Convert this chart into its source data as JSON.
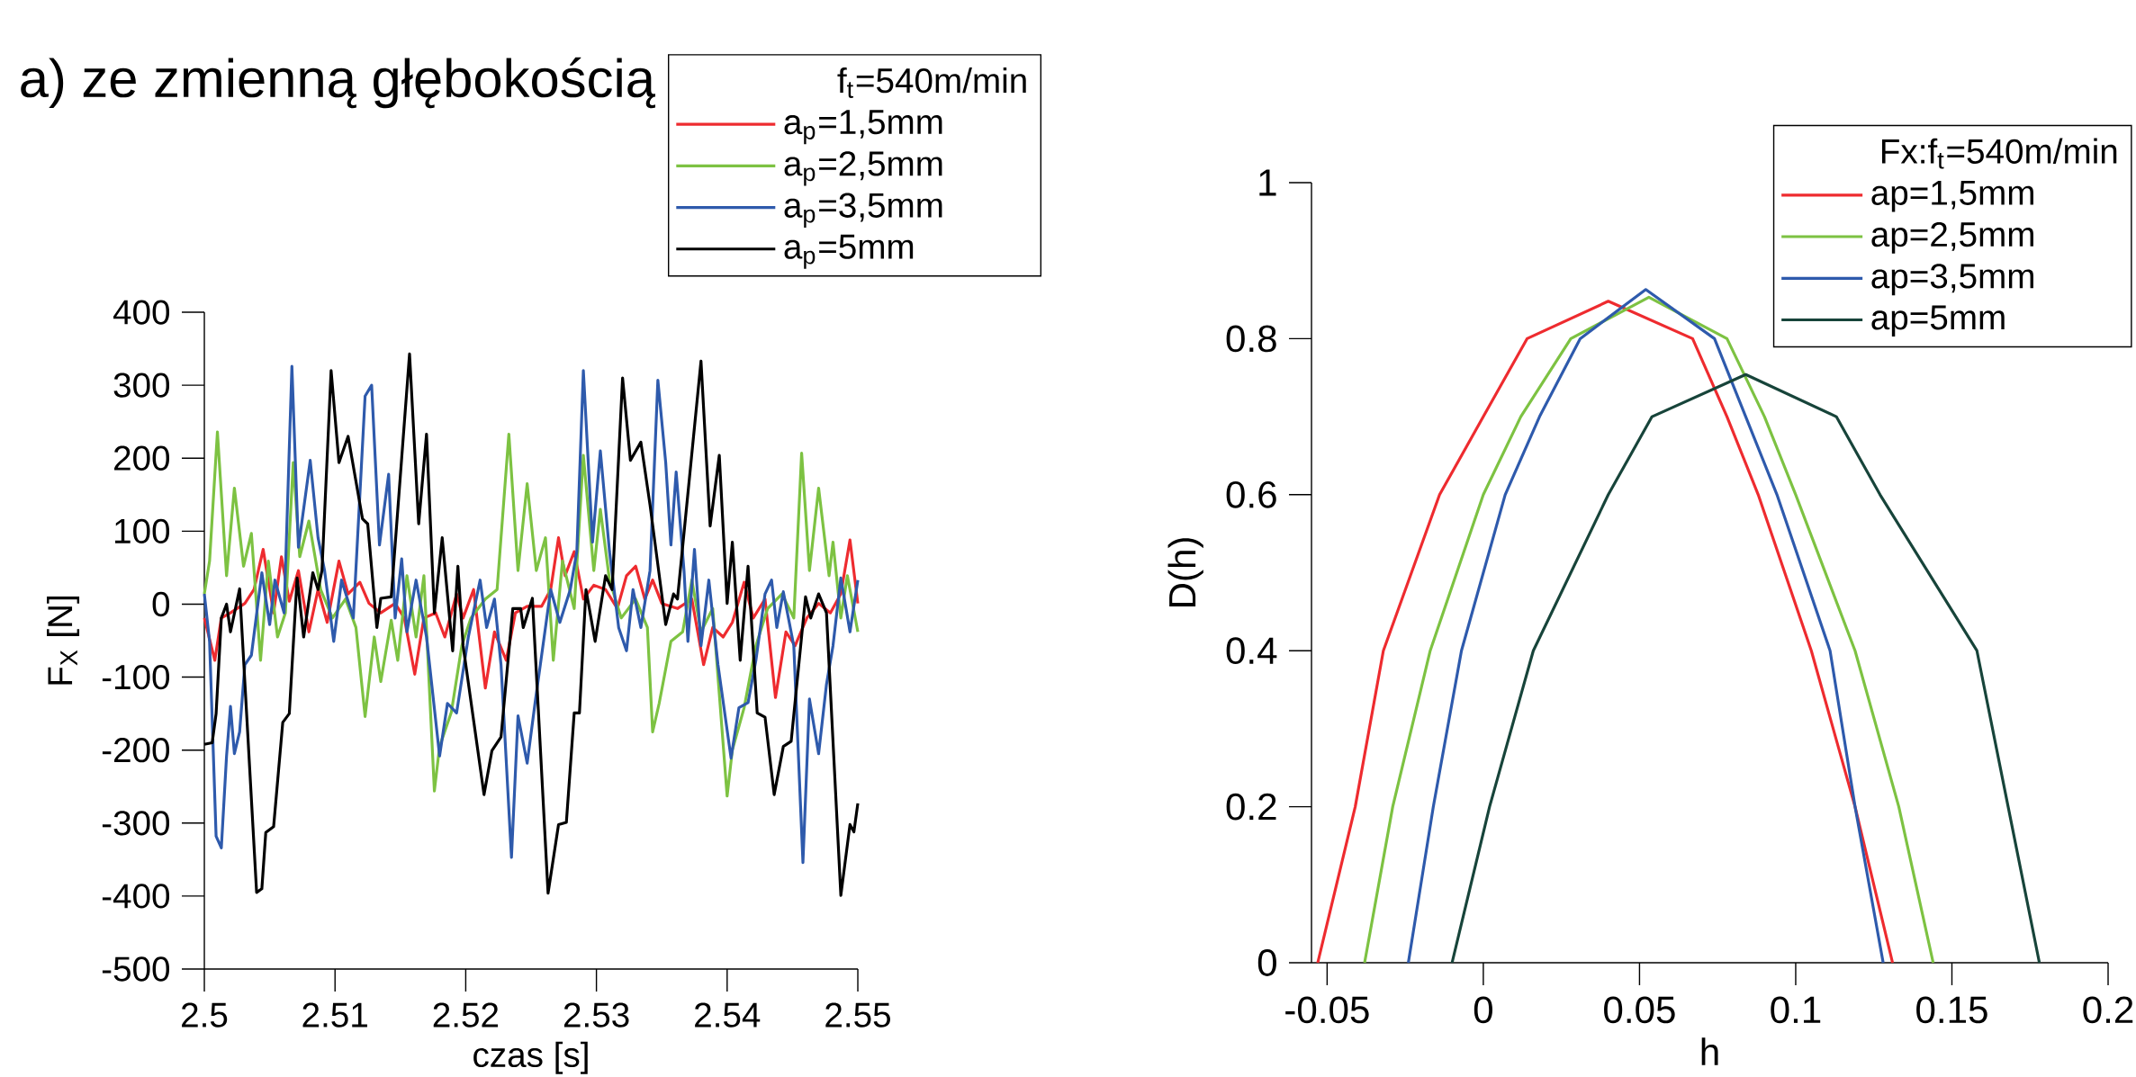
{
  "chart_data": [
    {
      "type": "line",
      "title": "a) ze zmienną głębokością",
      "xlabel": "czas [s]",
      "ylabel": "F$_{X}$ [N]",
      "legend_title": "f$_{t}$=540m/min",
      "legend": "top right",
      "xlim": [
        2.5,
        2.55
      ],
      "ylim": [
        -500,
        400
      ],
      "xticks": [
        2.5,
        2.51,
        2.52,
        2.53,
        2.54,
        2.55
      ],
      "yticks": [
        -500,
        -400,
        -300,
        -200,
        -100,
        0,
        100,
        200,
        300,
        400
      ],
      "series": [
        {
          "name": "a$_{p}$=1,5mm",
          "color": "#ee2b2f",
          "x": [
            2.5,
            2.5008,
            2.5013,
            2.502,
            2.5031,
            2.5038,
            2.5045,
            2.5053,
            2.5059,
            2.5065,
            2.5072,
            2.508,
            2.5087,
            2.5094,
            2.5103,
            2.511,
            2.5119,
            2.5126,
            2.5135,
            2.5146,
            2.5153,
            2.5161,
            2.5168,
            2.5177,
            2.5184,
            2.5193,
            2.5198,
            2.5206,
            2.5215,
            2.5222,
            2.5231,
            2.5238,
            2.5247,
            2.5258,
            2.5265,
            2.5271,
            2.5276,
            2.5283,
            2.529,
            2.5298,
            2.5307,
            2.5316,
            2.5323,
            2.533,
            2.5337,
            2.5343,
            2.535,
            2.5362,
            2.5373,
            2.5382,
            2.5389,
            2.5397,
            2.5404,
            2.5413,
            2.542,
            2.5429,
            2.5437,
            2.5445,
            2.5452,
            2.5461,
            2.547,
            2.5479,
            2.5487,
            2.5494,
            2.55
          ],
          "values": [
            -19,
            -77,
            -19,
            -12,
            1,
            20,
            75,
            -12,
            65,
            4,
            46,
            -38,
            20,
            -25,
            59,
            14,
            30,
            1,
            -12,
            1,
            -19,
            -96,
            -19,
            -12,
            -45,
            14,
            -19,
            20,
            -115,
            -38,
            -77,
            -12,
            -3,
            -3,
            20,
            91,
            39,
            72,
            7,
            26,
            20,
            -6,
            39,
            52,
            7,
            33,
            1,
            -6,
            7,
            -83,
            -32,
            -45,
            -25,
            30,
            -19,
            7,
            -128,
            -38,
            -57,
            -19,
            1,
            -12,
            14,
            88,
            1
          ]
        },
        {
          "name": "a$_{p}$=2,5mm",
          "color": "#7dc242",
          "x": [
            2.5,
            2.5004,
            2.501,
            2.5017,
            2.5023,
            2.503,
            2.5036,
            2.5043,
            2.5049,
            2.5056,
            2.5062,
            2.5068,
            2.5073,
            2.508,
            2.5089,
            2.5098,
            2.5108,
            2.5116,
            2.5123,
            2.513,
            2.5135,
            2.5143,
            2.5148,
            2.5155,
            2.5162,
            2.5168,
            2.5176,
            2.518,
            2.5189,
            2.5197,
            2.5204,
            2.5215,
            2.5224,
            2.5233,
            2.524,
            2.5247,
            2.5254,
            2.5261,
            2.5267,
            2.5274,
            2.5283,
            2.529,
            2.5298,
            2.5303,
            2.531,
            2.5319,
            2.533,
            2.5339,
            2.5343,
            2.5348,
            2.5357,
            2.5366,
            2.5373,
            2.538,
            2.5389,
            2.54,
            2.5404,
            2.5413,
            2.5422,
            2.5431,
            2.5442,
            2.5451,
            2.5457,
            2.5463,
            2.547,
            2.5478,
            2.5481,
            2.5487,
            2.5492,
            2.55
          ],
          "values": [
            14,
            59,
            236,
            39,
            159,
            52,
            97,
            -77,
            59,
            -45,
            -12,
            194,
            65,
            114,
            20,
            -19,
            7,
            -32,
            -154,
            -45,
            -106,
            -22,
            -77,
            39,
            -45,
            39,
            -256,
            -195,
            -148,
            -57,
            -19,
            7,
            20,
            233,
            46,
            165,
            46,
            91,
            -77,
            59,
            -6,
            204,
            46,
            130,
            33,
            -19,
            7,
            -32,
            -175,
            -136,
            -51,
            -38,
            33,
            -38,
            -6,
            -263,
            -200,
            -142,
            -57,
            -6,
            14,
            -19,
            207,
            46,
            159,
            39,
            85,
            -19,
            39,
            -38
          ]
        },
        {
          "name": "a$_{p}$=3,5mm",
          "color": "#2e5aac",
          "x": [
            2.5,
            2.5004,
            2.5009,
            2.5013,
            2.5017,
            2.502,
            2.5023,
            2.5027,
            2.5031,
            2.5036,
            2.5044,
            2.505,
            2.5054,
            2.5061,
            2.5067,
            2.5072,
            2.5081,
            2.5087,
            2.5092,
            2.5099,
            2.5105,
            2.5114,
            2.5123,
            2.5128,
            2.5134,
            2.5141,
            2.5146,
            2.5151,
            2.5155,
            2.5162,
            2.517,
            2.518,
            2.5186,
            2.5193,
            2.5202,
            2.5211,
            2.5216,
            2.5222,
            2.5227,
            2.5235,
            2.524,
            2.5247,
            2.5253,
            2.5265,
            2.5272,
            2.528,
            2.5285,
            2.529,
            2.5297,
            2.5303,
            2.531,
            2.5317,
            2.5323,
            2.5328,
            2.5334,
            2.5341,
            2.5347,
            2.5353,
            2.5357,
            2.5361,
            2.5367,
            2.537,
            2.5375,
            2.538,
            2.5386,
            2.5393,
            2.5403,
            2.5409,
            2.5416,
            2.5422,
            2.5429,
            2.5434,
            2.5438,
            2.5443,
            2.5451,
            2.5458,
            2.5463,
            2.547,
            2.5476,
            2.5481,
            2.5487,
            2.5494,
            2.55
          ],
          "values": [
            14,
            -51,
            -318,
            -334,
            -208,
            -140,
            -205,
            -175,
            -83,
            -70,
            43,
            -28,
            33,
            -12,
            326,
            78,
            197,
            91,
            46,
            -51,
            33,
            -19,
            285,
            300,
            81,
            178,
            -19,
            62,
            -38,
            33,
            -45,
            -208,
            -136,
            -149,
            -45,
            33,
            -32,
            7,
            -83,
            -347,
            -153,
            -218,
            -136,
            20,
            -25,
            20,
            72,
            320,
            85,
            210,
            72,
            -32,
            -64,
            20,
            -32,
            46,
            307,
            194,
            81,
            181,
            46,
            -51,
            75,
            -57,
            33,
            -83,
            -211,
            -142,
            -135,
            -77,
            14,
            33,
            -32,
            17,
            -57,
            -354,
            -130,
            -205,
            -110,
            -57,
            36,
            -38,
            33
          ]
        },
        {
          "name": "a$_{p}$=5mm",
          "color": "#000000",
          "x": [
            2.5,
            2.5006,
            2.5009,
            2.5013,
            2.5017,
            2.502,
            2.5027,
            2.504,
            2.5044,
            2.5047,
            2.5053,
            2.506,
            2.5065,
            2.5071,
            2.5076,
            2.5083,
            2.5087,
            2.509,
            2.5097,
            2.5103,
            2.511,
            2.5121,
            2.5125,
            2.5132,
            2.5135,
            2.5143,
            2.5157,
            2.5164,
            2.517,
            2.5176,
            2.5182,
            2.519,
            2.5194,
            2.5198,
            2.5206,
            2.5214,
            2.522,
            2.5227,
            2.5236,
            2.5242,
            2.5244,
            2.5251,
            2.5263,
            2.5271,
            2.5277,
            2.5283,
            2.5287,
            2.5292,
            2.5299,
            2.5307,
            2.5312,
            2.532,
            2.5326,
            2.5334,
            2.5341,
            2.5353,
            2.5359,
            2.5362,
            2.538,
            2.5387,
            2.5394,
            2.54,
            2.5404,
            2.541,
            2.5416,
            2.5423,
            2.5429,
            2.5436,
            2.5443,
            2.5449,
            2.546,
            2.5464,
            2.547,
            2.5476,
            2.5487,
            2.5494,
            2.5497,
            2.55
          ],
          "values": [
            -192,
            -190,
            -150,
            -19,
            0,
            -38,
            21,
            -395,
            -390,
            -313,
            -305,
            -162,
            -150,
            36,
            -45,
            43,
            20,
            46,
            320,
            194,
            230,
            117,
            110,
            -32,
            8,
            10,
            343,
            110,
            233,
            -12,
            91,
            -64,
            52,
            -57,
            -159,
            -261,
            -201,
            -182,
            -6,
            -6,
            -32,
            8,
            -396,
            -302,
            -299,
            -149,
            -149,
            20,
            -51,
            39,
            20,
            310,
            197,
            222,
            136,
            -28,
            14,
            7,
            333,
            107,
            204,
            1,
            85,
            -77,
            52,
            -149,
            -155,
            -261,
            -195,
            -188,
            10,
            -19,
            14,
            -12,
            -399,
            -302,
            -312,
            -273
          ]
        }
      ]
    },
    {
      "type": "line",
      "xlabel": "h",
      "ylabel": "D(h)",
      "legend_title": "Fx:f$_{t}$=540m/min",
      "legend": "top right",
      "xlim": [
        -0.055,
        0.2
      ],
      "ylim": [
        0,
        1
      ],
      "xticks": [
        -0.05,
        0,
        0.05,
        0.1,
        0.15,
        0.2
      ],
      "yticks": [
        0,
        0.2,
        0.4,
        0.6,
        0.8,
        1
      ],
      "series": [
        {
          "name": "ap=1,5mm",
          "color": "#ee2b2f",
          "x": [
            -0.053,
            -0.041,
            -0.032,
            -0.014,
            0.0,
            0.014,
            0.04,
            0.067,
            0.078,
            0.088,
            0.105,
            0.119,
            0.131
          ],
          "values": [
            0,
            0.2,
            0.4,
            0.6,
            0.7,
            0.8,
            0.848,
            0.8,
            0.7,
            0.6,
            0.4,
            0.2,
            0
          ]
        },
        {
          "name": "ap=2,5mm",
          "color": "#7dc242",
          "x": [
            -0.038,
            -0.029,
            -0.017,
            0.0,
            0.012,
            0.028,
            0.053,
            0.078,
            0.09,
            0.1,
            0.119,
            0.133,
            0.144
          ],
          "values": [
            0,
            0.2,
            0.4,
            0.6,
            0.7,
            0.8,
            0.853,
            0.8,
            0.7,
            0.6,
            0.4,
            0.2,
            0
          ]
        },
        {
          "name": "ap=3,5mm",
          "color": "#2e5aac",
          "x": [
            -0.024,
            -0.016,
            -0.007,
            0.007,
            0.018,
            0.031,
            0.052,
            0.074,
            0.084,
            0.094,
            0.111,
            0.119,
            0.128
          ],
          "values": [
            0,
            0.2,
            0.4,
            0.6,
            0.7,
            0.8,
            0.863,
            0.8,
            0.7,
            0.6,
            0.4,
            0.2,
            0
          ]
        },
        {
          "name": "ap=5mm",
          "color": "#17443a",
          "x": [
            -0.01,
            0.002,
            0.016,
            0.04,
            0.054,
            0.084,
            0.113,
            0.127,
            0.158,
            0.168,
            0.178
          ],
          "values": [
            0,
            0.2,
            0.4,
            0.6,
            0.7,
            0.754,
            0.7,
            0.6,
            0.4,
            0.2,
            0
          ]
        }
      ]
    }
  ]
}
